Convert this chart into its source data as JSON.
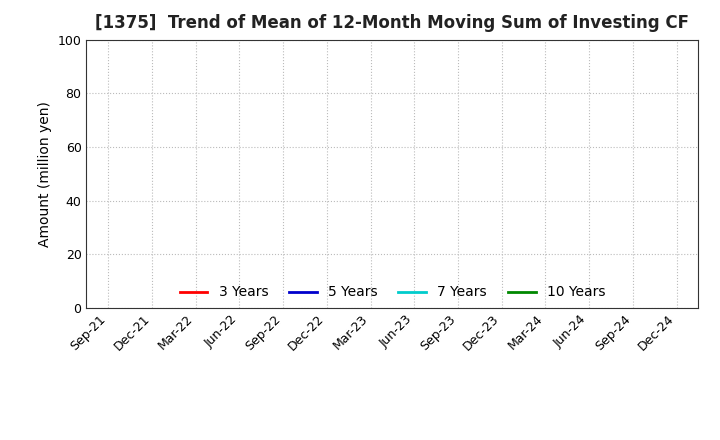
{
  "title": "[1375]  Trend of Mean of 12-Month Moving Sum of Investing CF",
  "ylabel": "Amount (million yen)",
  "ylim": [
    0,
    100
  ],
  "yticks": [
    0,
    20,
    40,
    60,
    80,
    100
  ],
  "x_labels": [
    "Sep-21",
    "Dec-21",
    "Mar-22",
    "Jun-22",
    "Sep-22",
    "Dec-22",
    "Mar-23",
    "Jun-23",
    "Sep-23",
    "Dec-23",
    "Mar-24",
    "Jun-24",
    "Sep-24",
    "Dec-24"
  ],
  "background_color": "#ffffff",
  "grid_color": "#bbbbbb",
  "legend_entries": [
    {
      "label": "3 Years",
      "color": "#ff0000"
    },
    {
      "label": "5 Years",
      "color": "#0000cc"
    },
    {
      "label": "7 Years",
      "color": "#00cccc"
    },
    {
      "label": "10 Years",
      "color": "#008800"
    }
  ],
  "title_fontsize": 12,
  "axis_label_fontsize": 10,
  "tick_fontsize": 9,
  "legend_fontsize": 10
}
